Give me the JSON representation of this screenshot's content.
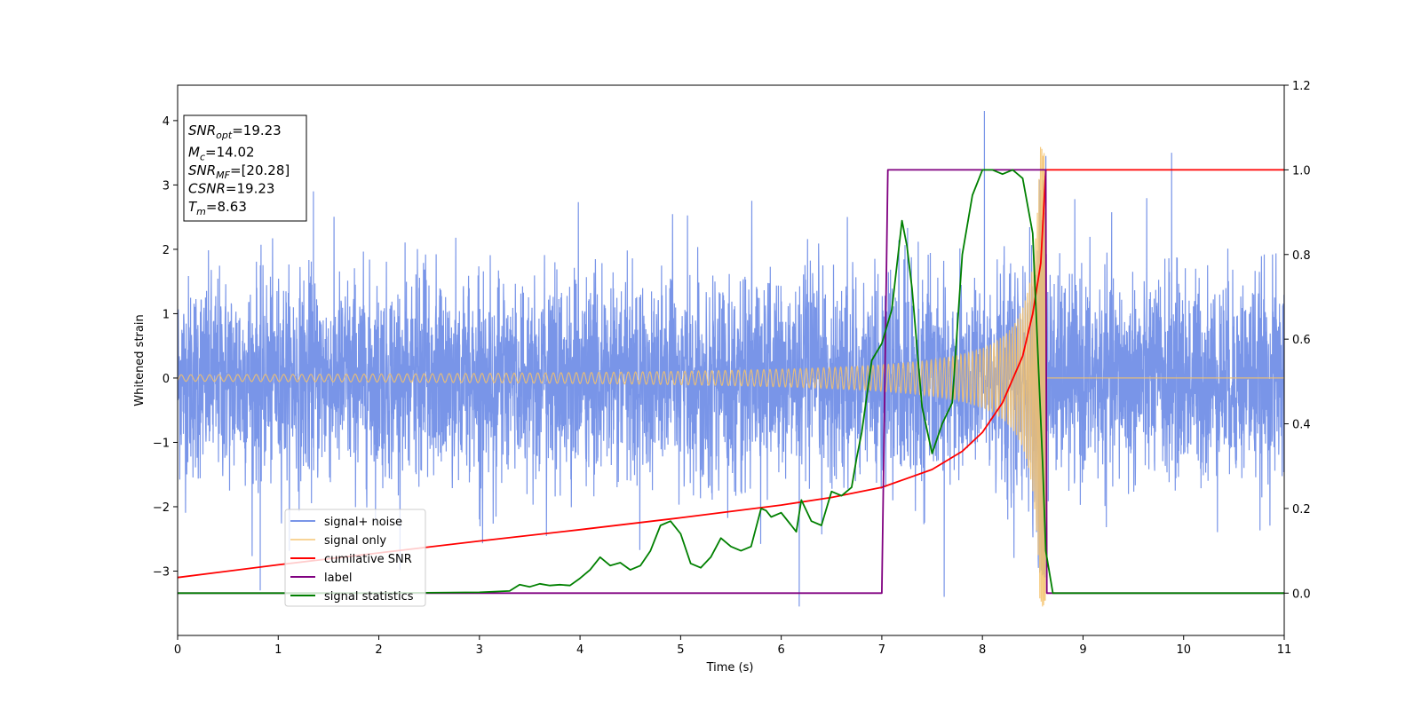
{
  "chart_data": {
    "type": "line",
    "xlabel": "Time (s)",
    "ylabel": "Whitened strain",
    "xlim": [
      0,
      11
    ],
    "ylim_left": [
      -4,
      4.55
    ],
    "ylim_right": [
      -0.1,
      1.2
    ],
    "x_ticks": [
      "0",
      "1",
      "2",
      "3",
      "4",
      "5",
      "6",
      "7",
      "8",
      "9",
      "10",
      "11"
    ],
    "y_left_ticks": [
      "4",
      "3",
      "2",
      "1",
      "0",
      "−1",
      "−2",
      "−3"
    ],
    "y_right_ticks": [
      "1.2",
      "1.0",
      "0.8",
      "0.6",
      "0.4",
      "0.2",
      "0.0"
    ],
    "legend_placement": "lower-left",
    "stats_box": [
      {
        "sym": "SNR",
        "sub": "opt",
        "val": "=19.23"
      },
      {
        "sym": "M",
        "sub": "c",
        "val": "=14.02"
      },
      {
        "sym": "SNR",
        "sub": "MF",
        "val": "=[20.28]"
      },
      {
        "sym": "CSNR",
        "sub": "",
        "val": "=19.23"
      },
      {
        "sym": "T",
        "sub": "m",
        "val": "=8.63"
      }
    ],
    "series": [
      {
        "name": "signal+ noise",
        "color": "#6a8ae6",
        "axis": "left",
        "kind": "noise",
        "typical_amplitude": 1.8,
        "outliers": [
          [
            1.35,
            2.9
          ],
          [
            8.02,
            4.15
          ],
          [
            9.88,
            3.5
          ],
          [
            6.18,
            -3.55
          ],
          [
            7.62,
            -3.4
          ],
          [
            8.63,
            3.45
          ],
          [
            0.82,
            -3.3
          ]
        ]
      },
      {
        "name": "signal only",
        "color": "#f5c26b",
        "axis": "left",
        "kind": "chirp",
        "t_merger": 8.63,
        "start_amplitude": 0.05,
        "peak_amplitude": 3.6
      },
      {
        "name": "cumilative SNR",
        "color": "#ff0000",
        "axis": "right",
        "x": [
          0,
          1,
          2,
          3,
          4,
          5,
          6,
          6.5,
          7,
          7.5,
          7.8,
          8.0,
          8.2,
          8.4,
          8.5,
          8.58,
          8.63,
          11
        ],
        "y": [
          0.037,
          0.067,
          0.095,
          0.123,
          0.15,
          0.178,
          0.208,
          0.226,
          0.25,
          0.292,
          0.335,
          0.38,
          0.45,
          0.56,
          0.66,
          0.78,
          1.0,
          1.0
        ]
      },
      {
        "name": "label",
        "color": "#800080",
        "axis": "right",
        "x": [
          0,
          7.0,
          7.06,
          8.63,
          8.64,
          11
        ],
        "y": [
          0,
          0,
          1,
          1,
          0,
          0
        ]
      },
      {
        "name": "signal statistics",
        "color": "#008000",
        "axis": "right",
        "x": [
          0,
          1,
          2,
          3,
          3.3,
          3.4,
          3.5,
          3.6,
          3.7,
          3.8,
          3.9,
          4.0,
          4.1,
          4.2,
          4.3,
          4.4,
          4.5,
          4.55,
          4.6,
          4.7,
          4.8,
          4.9,
          5.0,
          5.1,
          5.2,
          5.3,
          5.4,
          5.5,
          5.6,
          5.7,
          5.8,
          5.85,
          5.9,
          6.0,
          6.1,
          6.15,
          6.2,
          6.3,
          6.4,
          6.5,
          6.6,
          6.7,
          6.75,
          6.8,
          6.9,
          7.0,
          7.1,
          7.2,
          7.25,
          7.3,
          7.4,
          7.5,
          7.6,
          7.7,
          7.8,
          7.9,
          8.0,
          8.1,
          8.2,
          8.3,
          8.4,
          8.5,
          8.6,
          8.63,
          8.7,
          11
        ],
        "y": [
          0,
          0,
          0,
          0.002,
          0.005,
          0.02,
          0.015,
          0.022,
          0.018,
          0.02,
          0.018,
          0.035,
          0.055,
          0.085,
          0.065,
          0.072,
          0.055,
          0.06,
          0.065,
          0.1,
          0.16,
          0.17,
          0.14,
          0.07,
          0.06,
          0.085,
          0.13,
          0.11,
          0.1,
          0.11,
          0.2,
          0.195,
          0.18,
          0.19,
          0.16,
          0.145,
          0.22,
          0.17,
          0.16,
          0.24,
          0.23,
          0.25,
          0.32,
          0.38,
          0.55,
          0.59,
          0.67,
          0.88,
          0.82,
          0.72,
          0.44,
          0.33,
          0.4,
          0.45,
          0.8,
          0.94,
          1.0,
          1.0,
          0.99,
          1.0,
          0.98,
          0.85,
          0.3,
          0.1,
          0.0,
          0.0
        ]
      }
    ]
  }
}
